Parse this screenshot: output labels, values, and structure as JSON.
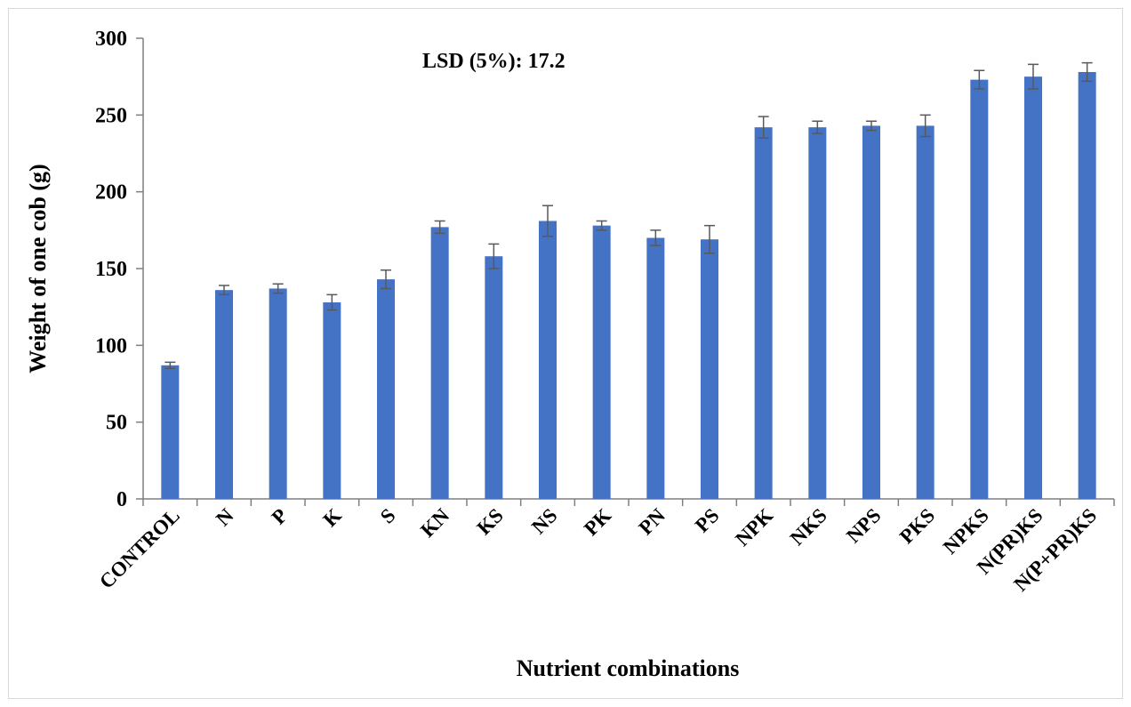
{
  "chart_data": {
    "type": "bar",
    "title": "",
    "annotation": "LSD (5%): 17.2",
    "xlabel": "Nutrient combinations",
    "ylabel": "Weight of one cob (g)",
    "ylim": [
      0,
      300
    ],
    "yticks": [
      "0",
      "50",
      "100",
      "150",
      "200",
      "250",
      "300"
    ],
    "categories": [
      "CONTROL",
      "N",
      "P",
      "K",
      "S",
      "KN",
      "KS",
      "NS",
      "PK",
      "PN",
      "PS",
      "NPK",
      "NKS",
      "NPS",
      "PKS",
      "NPKS",
      "N(PR)KS",
      "N(P+PR)KS"
    ],
    "values": [
      87,
      136,
      137,
      128,
      143,
      177,
      158,
      181,
      178,
      170,
      169,
      242,
      242,
      243,
      243,
      273,
      275,
      278
    ],
    "error": [
      2,
      3,
      3,
      5,
      6,
      4,
      8,
      10,
      3,
      5,
      9,
      7,
      4,
      3,
      7,
      6,
      8,
      6
    ],
    "bar_color": "#4472C4",
    "error_color": "#595959",
    "grid": false,
    "legend": "none"
  }
}
